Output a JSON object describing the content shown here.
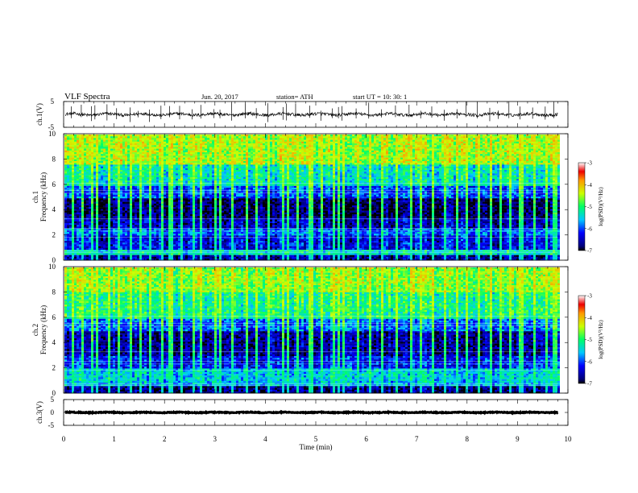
{
  "header": {
    "title": "VLF  Spectra",
    "date": "Jun. 20, 2017",
    "station": "station= ATH",
    "start": "start  UT  =    10: 30: 1"
  },
  "chart_data": [
    {
      "type": "line",
      "name": "ch1-waveform",
      "ylabel": "ch.1(V)",
      "yticks": [
        "5",
        "-5"
      ],
      "ylim": [
        -5,
        5
      ],
      "xlim": [
        0,
        10
      ],
      "data_end_min": 9.8,
      "baseline": 0.0,
      "noise_amplitude": 0.6,
      "spikes": [
        0.15,
        0.35,
        0.55,
        0.62,
        0.86,
        1.05,
        1.32,
        1.48,
        1.7,
        1.93,
        2.1,
        2.3,
        2.55,
        2.72,
        2.98,
        3.1,
        3.33,
        3.6,
        3.82,
        4.05,
        4.35,
        4.42,
        4.6,
        4.88,
        5.1,
        5.33,
        5.45,
        5.52,
        5.8,
        6.05,
        6.3,
        6.58,
        6.85,
        7.08,
        7.3,
        7.55,
        7.8,
        7.98,
        8.2,
        8.45,
        8.62,
        8.83,
        9.05,
        9.3,
        9.55,
        9.72
      ]
    },
    {
      "type": "heatmap",
      "name": "ch1-spectrogram",
      "ylabel": "ch.1\nFrequency  (kHz)",
      "xlim": [
        0,
        10
      ],
      "ylim": [
        0,
        10
      ],
      "yticks": [
        "0",
        "2",
        "4",
        "6",
        "8",
        "10"
      ],
      "data_end_min": 9.8,
      "colorbar": {
        "label": "log(PSD)(V²/Hz)",
        "range": [
          -7,
          -3
        ],
        "ticks": [
          "-3",
          "-4",
          "-5",
          "-6",
          "-7"
        ]
      },
      "bands_khz_logpsd": [
        {
          "from": 0.0,
          "to": 0.5,
          "value": -6.6
        },
        {
          "from": 0.5,
          "to": 0.9,
          "value": -5.3
        },
        {
          "from": 0.9,
          "to": 2.0,
          "value": -6.3
        },
        {
          "from": 2.0,
          "to": 2.6,
          "value": -5.9
        },
        {
          "from": 2.6,
          "to": 3.4,
          "value": -6.5
        },
        {
          "from": 3.4,
          "to": 5.0,
          "value": -6.8
        },
        {
          "from": 5.0,
          "to": 6.0,
          "value": -6.0
        },
        {
          "from": 6.0,
          "to": 7.6,
          "value": -5.3
        },
        {
          "from": 7.6,
          "to": 10.0,
          "value": -4.5
        }
      ]
    },
    {
      "type": "heatmap",
      "name": "ch2-spectrogram",
      "ylabel": "ch.2\nFrequency  (kHz)",
      "xlim": [
        0,
        10
      ],
      "ylim": [
        0,
        10
      ],
      "yticks": [
        "0",
        "2",
        "4",
        "6",
        "8",
        "10"
      ],
      "data_end_min": 9.8,
      "colorbar": {
        "label": "log(PSD)(V²/Hz)",
        "range": [
          -7,
          -3
        ],
        "ticks": [
          "-3",
          "-4",
          "-5",
          "-6",
          "-7"
        ]
      },
      "bands_khz_logpsd": [
        {
          "from": 0.0,
          "to": 0.6,
          "value": -6.7
        },
        {
          "from": 0.6,
          "to": 1.0,
          "value": -5.6
        },
        {
          "from": 1.0,
          "to": 2.0,
          "value": -5.5
        },
        {
          "from": 2.0,
          "to": 3.0,
          "value": -6.2
        },
        {
          "from": 3.0,
          "to": 5.0,
          "value": -6.6
        },
        {
          "from": 5.0,
          "to": 6.0,
          "value": -5.9
        },
        {
          "from": 6.0,
          "to": 8.0,
          "value": -5.1
        },
        {
          "from": 8.0,
          "to": 10.0,
          "value": -4.6
        }
      ]
    },
    {
      "type": "line",
      "name": "ch3-waveform",
      "ylabel": "ch.3(V)",
      "yticks": [
        "5",
        "0",
        "-5"
      ],
      "ylim": [
        -5,
        5
      ],
      "xlim": [
        0,
        10
      ],
      "data_end_min": 9.8,
      "baseline": 0.0,
      "noise_amplitude": 0.15,
      "spikes": []
    }
  ],
  "x_axis": {
    "label": "Time  (min)",
    "ticks": [
      "0",
      "1",
      "2",
      "3",
      "4",
      "5",
      "6",
      "7",
      "8",
      "9",
      "10"
    ]
  }
}
